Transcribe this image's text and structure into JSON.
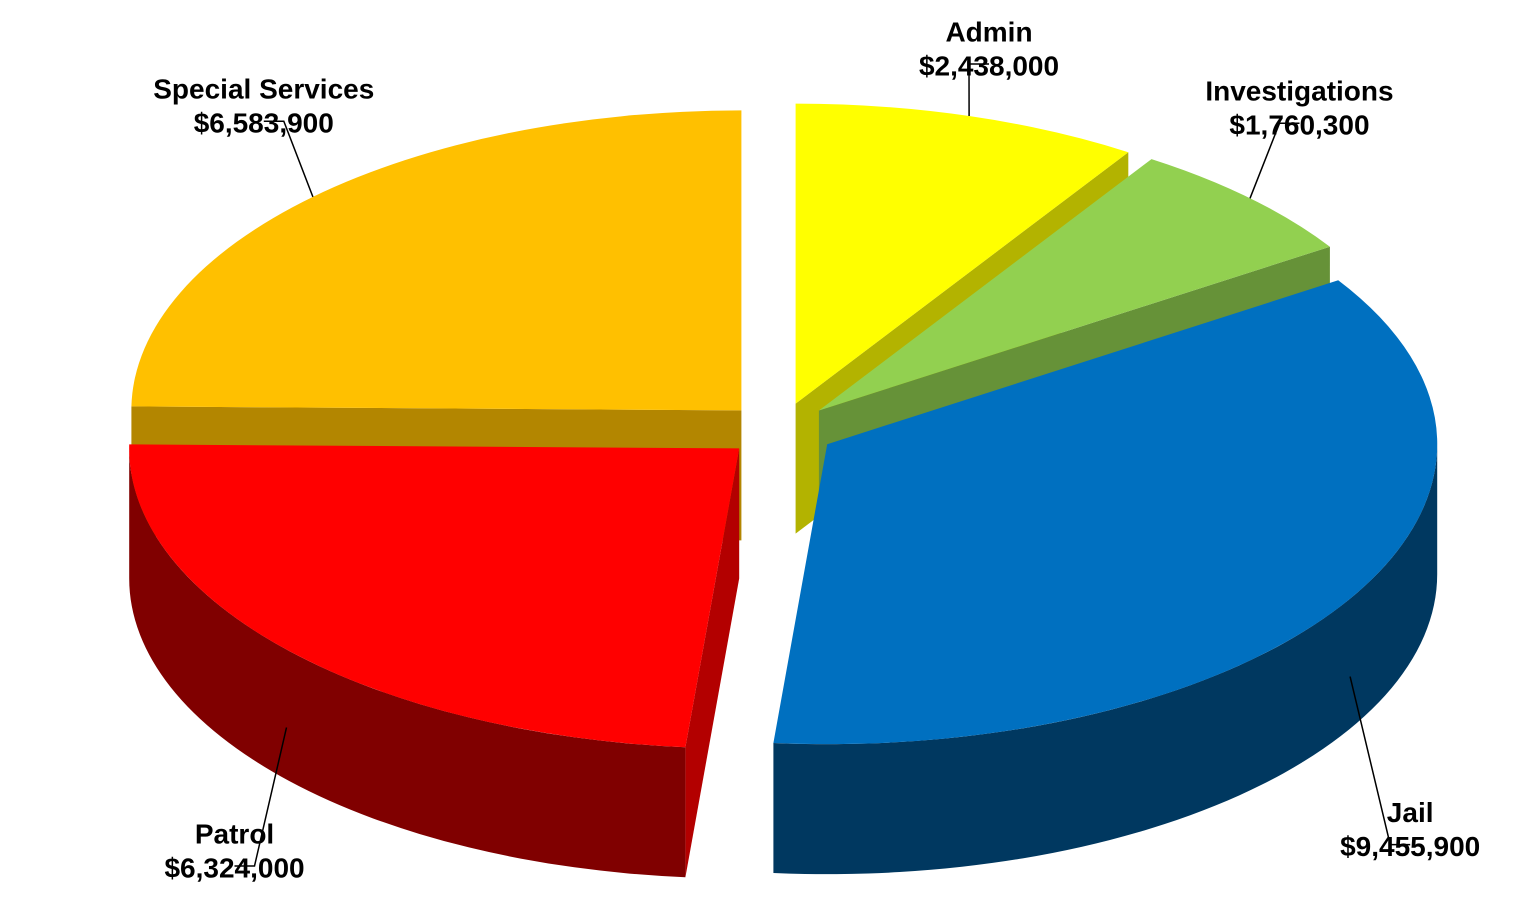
{
  "chart_data": {
    "type": "pie",
    "categories": [
      "Admin",
      "Investigations",
      "Jail",
      "Patrol",
      "Special Services"
    ],
    "values": [
      2438000,
      1760300,
      9455900,
      6324000,
      6583900
    ],
    "value_labels": [
      "$2,438,000",
      "$1,760,300",
      "$9,455,900",
      "$6,324,000",
      "$6,583,900"
    ],
    "colors": [
      "#ffff00",
      "#92d050",
      "#0070c0",
      "#ff0000",
      "#ffc000"
    ]
  }
}
